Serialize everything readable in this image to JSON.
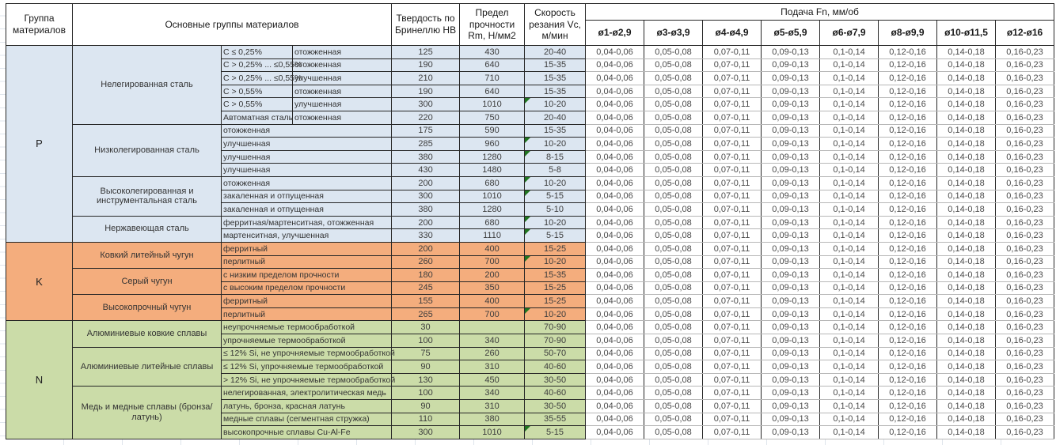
{
  "headers": {
    "group": "Группа материалов",
    "main_groups": "Основные группы материалов",
    "hardness": "Твердость по Бринеллю HB",
    "strength": "Предел прочности Rm, Н/мм2",
    "speed": "Скорость резания Vc, м/мин",
    "feed": "Подача Fn, мм/об",
    "diameters": [
      "ø1-ø2,9",
      "ø3-ø3,9",
      "ø4-ø4,9",
      "ø5-ø5,9",
      "ø6-ø7,9",
      "ø8-ø9,9",
      "ø10-ø11,5",
      "ø12-ø16"
    ]
  },
  "feed_values": [
    "0,04-0,06",
    "0,05-0,08",
    "0,07-0,11",
    "0,09-0,13",
    "0,1-0,14",
    "0,12-0,16",
    "0,14-0,18",
    "0,16-0,23"
  ],
  "colors": {
    "section_p": "#dce6f1",
    "section_k": "#f4ad7d",
    "section_n": "#cbdca8",
    "flag_triangle": "#207520",
    "grid": "#262626",
    "feed_row_divider": "#b7b7b7"
  },
  "sections": [
    {
      "group": "P",
      "color": "#dce6f1",
      "subgroups": [
        {
          "name": "Нелегированная сталь",
          "rows": [
            {
              "desc1": "C ≤ 0,25%",
              "desc2": "отожженная",
              "hb": "125",
              "rm": "430",
              "vc": "20-40",
              "flag": false
            },
            {
              "desc1": "C > 0,25% ... ≤0,55%",
              "desc2": "отожженная",
              "hb": "190",
              "rm": "640",
              "vc": "15-35",
              "flag": false
            },
            {
              "desc1": "C > 0,25% ... ≤0,55%",
              "desc2": "улучшенная",
              "hb": "210",
              "rm": "710",
              "vc": "15-35",
              "flag": false
            },
            {
              "desc1": "C > 0,55%",
              "desc2": "отожженная",
              "hb": "190",
              "rm": "640",
              "vc": "15-35",
              "flag": false
            },
            {
              "desc1": "C > 0,55%",
              "desc2": "улучшенная",
              "hb": "300",
              "rm": "1010",
              "vc": "10-20",
              "flag": true
            },
            {
              "desc1": "Автоматная сталь",
              "desc2": "отожженная",
              "hb": "220",
              "rm": "750",
              "vc": "20-40",
              "flag": false
            }
          ]
        },
        {
          "name": "Низколегированная сталь",
          "rows": [
            {
              "desc": "отожженная",
              "hb": "175",
              "rm": "590",
              "vc": "15-35",
              "flag": false
            },
            {
              "desc": "улучшенная",
              "hb": "285",
              "rm": "960",
              "vc": "10-20",
              "flag": true
            },
            {
              "desc": "улучшенная",
              "hb": "380",
              "rm": "1280",
              "vc": "8-15",
              "flag": true
            },
            {
              "desc": "улучшенная",
              "hb": "430",
              "rm": "1480",
              "vc": "5-8",
              "flag": false
            }
          ]
        },
        {
          "name": "Высоколегированная и инструментальная сталь",
          "rows": [
            {
              "desc": "отожженная",
              "hb": "200",
              "rm": "680",
              "vc": "10-20",
              "flag": true
            },
            {
              "desc": "закаленная и отпущенная",
              "hb": "300",
              "rm": "1010",
              "vc": "5-15",
              "flag": true
            },
            {
              "desc": "закаленная и отпущенная",
              "hb": "380",
              "rm": "1280",
              "vc": "5-10",
              "flag": false
            }
          ]
        },
        {
          "name": "Нержавеющая сталь",
          "rows": [
            {
              "desc": "ферритная/мартенситная, отожженная",
              "hb": "200",
              "rm": "680",
              "vc": "10-20",
              "flag": true
            },
            {
              "desc": "мартенситная, улучшенная",
              "hb": "330",
              "rm": "1110",
              "vc": "5-15",
              "flag": true
            }
          ]
        }
      ]
    },
    {
      "group": "K",
      "color": "#f4ad7d",
      "subgroups": [
        {
          "name": "Ковкий литейный чугун",
          "rows": [
            {
              "desc": "ферритный",
              "hb": "200",
              "rm": "400",
              "vc": "15-25",
              "flag": false
            },
            {
              "desc": "перлитный",
              "hb": "260",
              "rm": "700",
              "vc": "10-20",
              "flag": true
            }
          ]
        },
        {
          "name": "Серый чугун",
          "rows": [
            {
              "desc": "с низким пределом прочности",
              "hb": "180",
              "rm": "200",
              "vc": "15-35",
              "flag": false
            },
            {
              "desc": "с высоким пределом прочности",
              "hb": "245",
              "rm": "350",
              "vc": "15-25",
              "flag": false
            }
          ]
        },
        {
          "name": "Высокопрочный чугун",
          "rows": [
            {
              "desc": "ферритный",
              "hb": "155",
              "rm": "400",
              "vc": "15-25",
              "flag": false
            },
            {
              "desc": "перлитный",
              "hb": "265",
              "rm": "700",
              "vc": "10-20",
              "flag": true
            }
          ]
        }
      ]
    },
    {
      "group": "N",
      "color": "#cbdca8",
      "subgroups": [
        {
          "name": "Алюминиевые ковкие сплавы",
          "rows": [
            {
              "desc": "неупрочняемые термообработкой",
              "hb": "30",
              "rm": "",
              "vc": "70-90",
              "flag": false
            },
            {
              "desc": "упрочняемые термообработкой",
              "hb": "100",
              "rm": "340",
              "vc": "70-90",
              "flag": false
            }
          ]
        },
        {
          "name": "Алюминиевые литейные сплавы",
          "rows": [
            {
              "desc": "≤ 12% Si, не упрочняемые термообработкой",
              "hb": "75",
              "rm": "260",
              "vc": "50-70",
              "flag": false
            },
            {
              "desc": "≤ 12% Si, упрочняемые термообработкой",
              "hb": "90",
              "rm": "310",
              "vc": "40-60",
              "flag": false
            },
            {
              "desc": "> 12% Si, не упрочняемые термообработкой",
              "hb": "130",
              "rm": "450",
              "vc": "30-50",
              "flag": false
            }
          ]
        },
        {
          "name": "Медь и медные сплавы (бронза/латунь)",
          "rows": [
            {
              "desc": "нелегированная, электролитическая медь",
              "hb": "100",
              "rm": "340",
              "vc": "40-60",
              "flag": false
            },
            {
              "desc": "латунь, бронза, красная латунь",
              "hb": "90",
              "rm": "310",
              "vc": "30-50",
              "flag": false
            },
            {
              "desc": "медные сплавы (сегментная стружка)",
              "hb": "110",
              "rm": "380",
              "vc": "35-55",
              "flag": false
            },
            {
              "desc": "высокопрочные сплавы Cu-Al-Fe",
              "hb": "300",
              "rm": "1010",
              "vc": "5-15",
              "flag": true
            }
          ]
        }
      ]
    }
  ]
}
